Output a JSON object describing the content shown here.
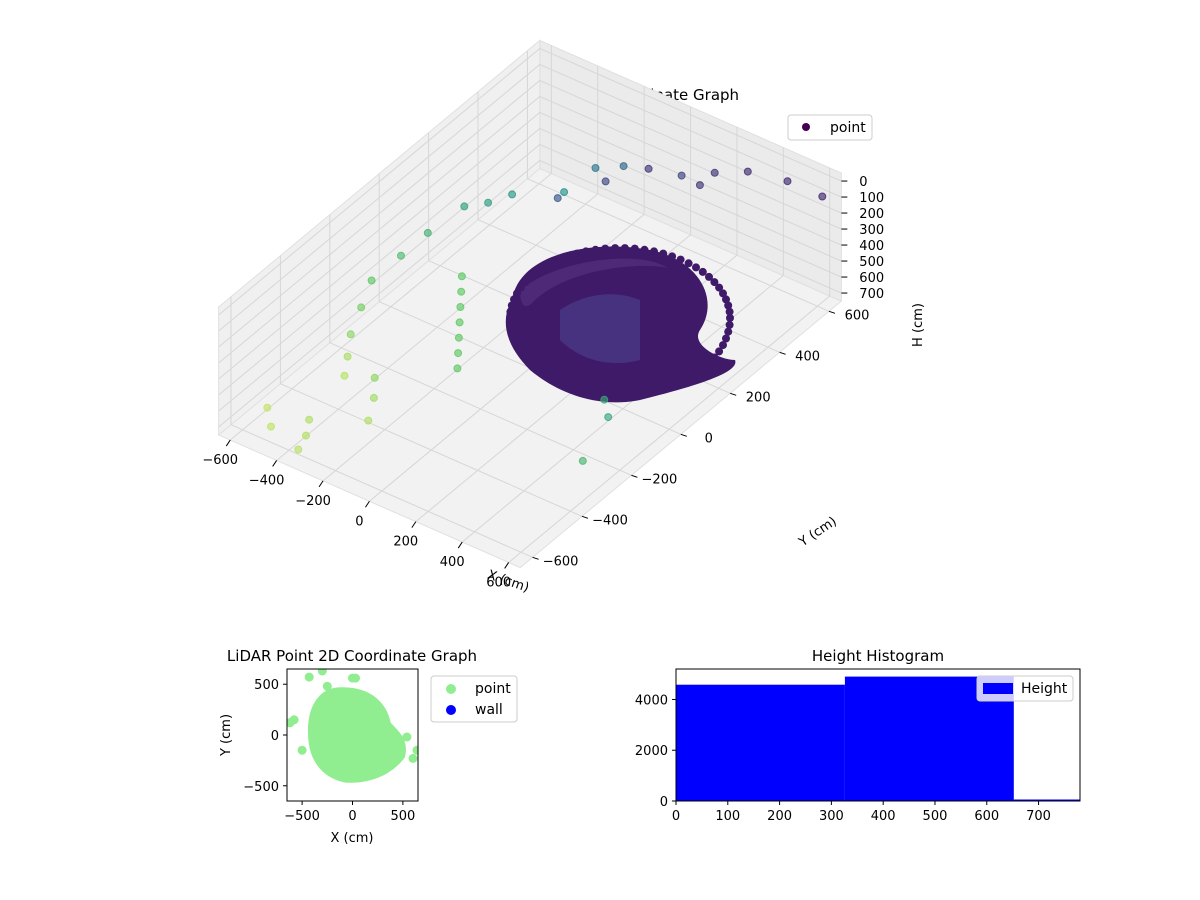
{
  "chart_data": [
    {
      "type": "scatter3d",
      "title": "LiDAR Point 3D Coordinate Graph",
      "xlabel": "X (cm)",
      "ylabel": "Y (cm)",
      "zlabel": "H (cm)",
      "xticks": [
        "−600",
        "−400",
        "−200",
        "0",
        "200",
        "400",
        "600"
      ],
      "yticks": [
        "600",
        "400",
        "200",
        "0",
        "−200",
        "−400",
        "−600"
      ],
      "zticks": [
        "0",
        "100",
        "200",
        "300",
        "400",
        "500",
        "600",
        "700"
      ],
      "xlim": [
        -650,
        650
      ],
      "ylim": [
        -650,
        650
      ],
      "zlim": [
        750,
        0
      ],
      "legend": {
        "position": "top-right",
        "entries": [
          "point"
        ]
      },
      "colormap": "viridis",
      "point_color": "#440154",
      "series": [
        {
          "name": "point",
          "points": [
            [
              -640,
              -40,
              560
            ],
            [
              -600,
              -120,
              600
            ],
            [
              -560,
              -200,
              640
            ],
            [
              -520,
              -250,
              690
            ],
            [
              -480,
              -300,
              720
            ],
            [
              -620,
              60,
              520
            ],
            [
              -600,
              150,
              480
            ],
            [
              -560,
              260,
              430
            ],
            [
              -500,
              300,
              420
            ],
            [
              -450,
              350,
              400
            ],
            [
              -300,
              420,
              380
            ],
            [
              -250,
              500,
              300
            ],
            [
              -150,
              520,
              250
            ],
            [
              100,
              520,
              150
            ],
            [
              200,
              560,
              120
            ],
            [
              300,
              600,
              100
            ],
            [
              450,
              620,
              90
            ],
            [
              600,
              620,
              90
            ],
            [
              -350,
              -300,
              650
            ],
            [
              -300,
              -350,
              680
            ],
            [
              -250,
              -420,
              700
            ],
            [
              -400,
              100,
              560
            ],
            [
              -350,
              50,
              560
            ],
            [
              -300,
              0,
              560
            ],
            [
              -250,
              -50,
              560
            ],
            [
              -200,
              -100,
              560
            ],
            [
              -150,
              -150,
              560
            ],
            [
              -100,
              -200,
              560
            ],
            [
              -420,
              -500,
              700
            ],
            [
              -380,
              -550,
              710
            ],
            [
              -360,
              -600,
              720
            ],
            [
              -520,
              -560,
              730
            ],
            [
              -600,
              -500,
              740
            ],
            [
              550,
              -200,
              450
            ],
            [
              600,
              -350,
              500
            ],
            [
              480,
              -150,
              450
            ],
            [
              -200,
              300,
              200
            ],
            [
              -100,
              400,
              160
            ],
            [
              0,
              480,
              120
            ],
            [
              200,
              500,
              120
            ]
          ]
        }
      ],
      "surface_color": "#3f1a68",
      "surface_highlight": "#4b2a7a"
    },
    {
      "type": "scatter",
      "title": "LiDAR Point 2D Coordinate Graph",
      "xlabel": "X (cm)",
      "ylabel": "Y (cm)",
      "xticks": [
        "−500",
        "0",
        "500"
      ],
      "yticks": [
        "500",
        "0",
        "−500"
      ],
      "xlim": [
        -650,
        650
      ],
      "ylim": [
        -650,
        650
      ],
      "legend": {
        "position": "outside-right",
        "entries": [
          "point",
          "wall"
        ]
      },
      "series": [
        {
          "name": "point",
          "color": "#90ee90",
          "points": [
            [
              -620,
              120
            ],
            [
              -580,
              150
            ],
            [
              -500,
              -150
            ],
            [
              -430,
              570
            ],
            [
              -300,
              630
            ],
            [
              -250,
              480
            ],
            [
              0,
              560
            ],
            [
              30,
              560
            ],
            [
              540,
              -20
            ],
            [
              600,
              -230
            ],
            [
              640,
              -150
            ]
          ]
        },
        {
          "name": "wall",
          "color": "#0000ff",
          "points": []
        }
      ],
      "blob": {
        "x_range": [
          -450,
          560
        ],
        "y_range": [
          -480,
          480
        ]
      }
    },
    {
      "type": "histogram",
      "title": "Height Histogram",
      "xticks": [
        "0",
        "100",
        "200",
        "300",
        "400",
        "500",
        "600",
        "700"
      ],
      "yticks": [
        "0",
        "2000",
        "4000"
      ],
      "xlim": [
        0,
        780
      ],
      "ylim": [
        0,
        5200
      ],
      "legend": {
        "position": "top-right",
        "entries": [
          "Height"
        ]
      },
      "color": "#0000ff",
      "bins": [
        {
          "x0": 0,
          "x1": 326,
          "count": 4580
        },
        {
          "x0": 326,
          "x1": 652,
          "count": 4900
        },
        {
          "x0": 652,
          "x1": 780,
          "count": 60
        }
      ]
    }
  ]
}
